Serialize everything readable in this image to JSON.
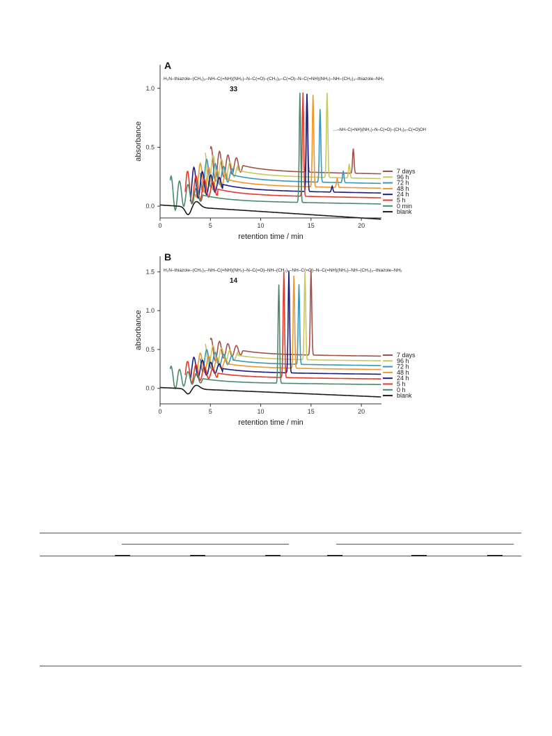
{
  "chart_data": [
    {
      "type": "line",
      "panel_label": "A",
      "compound_label": "33",
      "struct_left": "H₂N–thiazole–(CH₂)₃–NH–C(=NH)(NH₂)–N–C(=O)–(CH₂)₈–C(=O)–N–C(=NH)(NH₂)–NH–(CH₂)₃–thiazole–NH₂",
      "inset_struct": "…–NH–C(=NH)(NH₂)–N–C(=O)–(CH₂)₈–C(=O)OH",
      "ylabel": "absorbance",
      "xlabel": "retention time / min",
      "xlim": [
        0,
        22
      ],
      "ylim": [
        -0.1,
        1.2
      ],
      "xticks": [
        0,
        5,
        10,
        15,
        20
      ],
      "yticks": [
        0.0,
        0.5,
        1.0
      ],
      "ytick_labels": [
        "0.0",
        "0.5",
        "1.0"
      ],
      "series": [
        {
          "name": "7 days",
          "color": "#a0524a",
          "x0": 5.0,
          "offset": 0.3,
          "peak_rt": 14.6,
          "peak_height": 0.66,
          "product_rt": 19.2,
          "product_height": 0.21
        },
        {
          "name": "96 h",
          "color": "#c8c860",
          "x0": 4.5,
          "offset": 0.26,
          "peak_rt": 16.6,
          "peak_height": 0.72,
          "product_rt": 18.8,
          "product_height": 0.12
        },
        {
          "name": "72 h",
          "color": "#3b96b8",
          "x0": 4.0,
          "offset": 0.22,
          "peak_rt": 15.9,
          "peak_height": 0.62,
          "product_rt": 18.2,
          "product_height": 0.1
        },
        {
          "name": "48 h",
          "color": "#f0962a",
          "x0": 3.5,
          "offset": 0.18,
          "peak_rt": 15.2,
          "peak_height": 0.78,
          "product_rt": 17.6,
          "product_height": 0.08
        },
        {
          "name": "24 h",
          "color": "#1c1c80",
          "x0": 3.0,
          "offset": 0.14,
          "peak_rt": 14.6,
          "peak_height": 0.83,
          "product_rt": 17.1,
          "product_height": 0.05
        },
        {
          "name": "5 h",
          "color": "#e03a2a",
          "x0": 2.5,
          "offset": 0.1,
          "peak_rt": 14.2,
          "peak_height": 0.88,
          "product_rt": 0,
          "product_height": 0
        },
        {
          "name": "0 min",
          "color": "#4a8a6a",
          "x0": 1.0,
          "offset": 0.05,
          "peak_rt": 13.9,
          "peak_height": 0.93,
          "product_rt": 0,
          "product_height": 0
        },
        {
          "name": "blank",
          "color": "#1a1a1a",
          "x0": 0.0,
          "offset": 0.0,
          "peak_rt": 0,
          "peak_height": 0,
          "product_rt": 0,
          "product_height": 0
        }
      ]
    },
    {
      "type": "line",
      "panel_label": "B",
      "compound_label": "14",
      "struct_left": "H₂N–thiazole–(CH₂)₃–NH–C(=NH)(NH₂)–N–C(=O)–NH–(CH₂)₆–NH–C(=O)–N–C(=NH)(NH₂)–NH–(CH₂)₃–thiazole–NH₂",
      "ylabel": "absorbance",
      "xlabel": "retention time / min",
      "xlim": [
        0,
        22
      ],
      "ylim": [
        -0.2,
        1.7
      ],
      "xticks": [
        0,
        5,
        10,
        15,
        20
      ],
      "yticks": [
        0.0,
        0.5,
        1.0,
        1.5
      ],
      "ytick_labels": [
        "0.0",
        "0.5",
        "1.0",
        "1.5"
      ],
      "series": [
        {
          "name": "7 days",
          "color": "#a0524a",
          "x0": 5.0,
          "offset": 0.44,
          "peak_rt": 15.0,
          "peak_height": 1.1
        },
        {
          "name": "96 h",
          "color": "#c8c860",
          "x0": 4.5,
          "offset": 0.38,
          "peak_rt": 14.4,
          "peak_height": 1.12
        },
        {
          "name": "72 h",
          "color": "#3b96b8",
          "x0": 4.0,
          "offset": 0.32,
          "peak_rt": 13.8,
          "peak_height": 1.03
        },
        {
          "name": "48 h",
          "color": "#f0962a",
          "x0": 3.5,
          "offset": 0.27,
          "peak_rt": 13.3,
          "peak_height": 1.19
        },
        {
          "name": "24 h",
          "color": "#1c1c80",
          "x0": 3.0,
          "offset": 0.21,
          "peak_rt": 12.8,
          "peak_height": 1.31
        },
        {
          "name": "5 h",
          "color": "#e03a2a",
          "x0": 2.5,
          "offset": 0.15,
          "peak_rt": 12.3,
          "peak_height": 1.36
        },
        {
          "name": "0 h",
          "color": "#4a8a6a",
          "x0": 1.0,
          "offset": 0.08,
          "peak_rt": 11.8,
          "peak_height": 1.27
        },
        {
          "name": "blank",
          "color": "#1a1a1a",
          "x0": 0.0,
          "offset": 0.0,
          "peak_rt": 0,
          "peak_height": 0
        }
      ]
    }
  ]
}
